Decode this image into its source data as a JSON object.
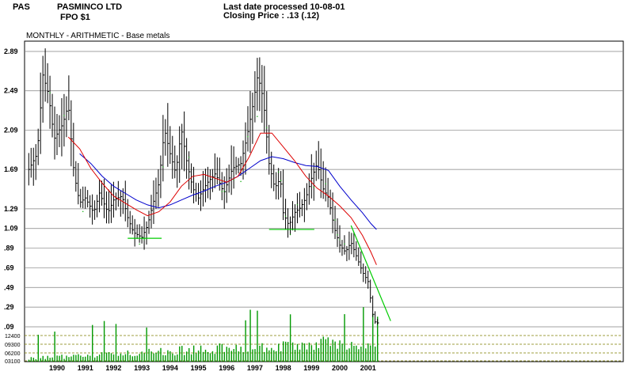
{
  "header": {
    "ticker": "PAS",
    "company": "PASMINCO LTD",
    "security": "FPO $1",
    "last_date": "Last date processed 10-08-01",
    "closing_price": "Closing Price : .13  (.12)"
  },
  "subtitle": "MONTHLY  -  ARITHMETIC  -      Base metals",
  "colors": {
    "price_bar": "#000000",
    "ma_short": "#dd0000",
    "ma_long": "#0000cc",
    "trendline": "#00cc00",
    "volume": "#009900",
    "grid": "#808080",
    "dotted_series": "#00aa00"
  },
  "chart_data": {
    "type": "ohlc-bar",
    "title": "PASMINCO LTD",
    "xlabel": "",
    "ylabel": "",
    "y_ticks": [
      2.89,
      2.49,
      2.09,
      1.69,
      1.29,
      1.09,
      0.89,
      0.69,
      0.49,
      0.29,
      0.09
    ],
    "y_tick_labels": [
      "2.89",
      "2.49",
      "2.09",
      "1.69",
      "1.29",
      "1.09",
      ".89",
      ".69",
      ".49",
      ".29",
      ".09"
    ],
    "x_years": [
      1990,
      1991,
      1992,
      1993,
      1994,
      1995,
      1996,
      1997,
      1998,
      1999,
      2000,
      2001
    ],
    "x_tick_labels": [
      "1990",
      "1991",
      "1992",
      "1993",
      "1994",
      "1995",
      "1996",
      "1997",
      "1998",
      "1999",
      "2000",
      "2001"
    ],
    "x_range": [
      1989.0,
      2001.4
    ],
    "volume_tick_labels": [
      "12400",
      "09300",
      "06200",
      "03100"
    ],
    "price_path": [
      {
        "t": 1989.0,
        "p": 1.69
      },
      {
        "t": 1989.3,
        "p": 1.85
      },
      {
        "t": 1989.5,
        "p": 2.65
      },
      {
        "t": 1989.7,
        "p": 2.45
      },
      {
        "t": 1989.9,
        "p": 2.0
      },
      {
        "t": 1990.2,
        "p": 2.15
      },
      {
        "t": 1990.4,
        "p": 2.35
      },
      {
        "t": 1990.6,
        "p": 1.65
      },
      {
        "t": 1990.8,
        "p": 1.35
      },
      {
        "t": 1991.0,
        "p": 1.4
      },
      {
        "t": 1991.3,
        "p": 1.25
      },
      {
        "t": 1991.5,
        "p": 1.45
      },
      {
        "t": 1991.8,
        "p": 1.25
      },
      {
        "t": 1992.0,
        "p": 1.38
      },
      {
        "t": 1992.3,
        "p": 1.42
      },
      {
        "t": 1992.5,
        "p": 1.2
      },
      {
        "t": 1992.7,
        "p": 1.05
      },
      {
        "t": 1993.0,
        "p": 1.0
      },
      {
        "t": 1993.2,
        "p": 1.12
      },
      {
        "t": 1993.4,
        "p": 1.35
      },
      {
        "t": 1993.6,
        "p": 1.55
      },
      {
        "t": 1993.8,
        "p": 2.1
      },
      {
        "t": 1994.0,
        "p": 1.85
      },
      {
        "t": 1994.2,
        "p": 1.65
      },
      {
        "t": 1994.4,
        "p": 2.1
      },
      {
        "t": 1994.6,
        "p": 1.75
      },
      {
        "t": 1994.8,
        "p": 1.5
      },
      {
        "t": 1995.0,
        "p": 1.4
      },
      {
        "t": 1995.3,
        "p": 1.55
      },
      {
        "t": 1995.6,
        "p": 1.65
      },
      {
        "t": 1995.9,
        "p": 1.45
      },
      {
        "t": 1996.2,
        "p": 1.7
      },
      {
        "t": 1996.5,
        "p": 1.75
      },
      {
        "t": 1996.7,
        "p": 2.0
      },
      {
        "t": 1996.9,
        "p": 2.3
      },
      {
        "t": 1997.1,
        "p": 2.65
      },
      {
        "t": 1997.3,
        "p": 2.4
      },
      {
        "t": 1997.5,
        "p": 1.75
      },
      {
        "t": 1997.7,
        "p": 1.5
      },
      {
        "t": 1997.9,
        "p": 1.6
      },
      {
        "t": 1998.0,
        "p": 1.25
      },
      {
        "t": 1998.2,
        "p": 1.12
      },
      {
        "t": 1998.4,
        "p": 1.25
      },
      {
        "t": 1998.6,
        "p": 1.3
      },
      {
        "t": 1998.8,
        "p": 1.4
      },
      {
        "t": 1999.0,
        "p": 1.6
      },
      {
        "t": 1999.2,
        "p": 1.75
      },
      {
        "t": 1999.4,
        "p": 1.5
      },
      {
        "t": 1999.6,
        "p": 1.4
      },
      {
        "t": 1999.8,
        "p": 1.1
      },
      {
        "t": 2000.0,
        "p": 0.92
      },
      {
        "t": 2000.2,
        "p": 0.85
      },
      {
        "t": 2000.4,
        "p": 0.95
      },
      {
        "t": 2000.6,
        "p": 0.8
      },
      {
        "t": 2000.8,
        "p": 0.65
      },
      {
        "t": 2001.0,
        "p": 0.55
      },
      {
        "t": 2001.1,
        "p": 0.35
      },
      {
        "t": 2001.2,
        "p": 0.15
      },
      {
        "t": 2001.3,
        "p": 0.13
      }
    ],
    "ma_short": [
      {
        "t": 1990.4,
        "p": 2.02
      },
      {
        "t": 1990.8,
        "p": 1.9
      },
      {
        "t": 1991.2,
        "p": 1.7
      },
      {
        "t": 1991.6,
        "p": 1.55
      },
      {
        "t": 1992.0,
        "p": 1.42
      },
      {
        "t": 1992.4,
        "p": 1.35
      },
      {
        "t": 1992.8,
        "p": 1.28
      },
      {
        "t": 1993.2,
        "p": 1.22
      },
      {
        "t": 1993.6,
        "p": 1.26
      },
      {
        "t": 1994.0,
        "p": 1.36
      },
      {
        "t": 1994.4,
        "p": 1.52
      },
      {
        "t": 1994.8,
        "p": 1.62
      },
      {
        "t": 1995.2,
        "p": 1.64
      },
      {
        "t": 1995.6,
        "p": 1.6
      },
      {
        "t": 1996.0,
        "p": 1.56
      },
      {
        "t": 1996.4,
        "p": 1.62
      },
      {
        "t": 1996.8,
        "p": 1.82
      },
      {
        "t": 1997.2,
        "p": 2.06
      },
      {
        "t": 1997.6,
        "p": 2.06
      },
      {
        "t": 1998.0,
        "p": 1.92
      },
      {
        "t": 1998.4,
        "p": 1.78
      },
      {
        "t": 1998.8,
        "p": 1.62
      },
      {
        "t": 1999.2,
        "p": 1.5
      },
      {
        "t": 1999.6,
        "p": 1.42
      },
      {
        "t": 2000.0,
        "p": 1.32
      },
      {
        "t": 2000.4,
        "p": 1.2
      },
      {
        "t": 2000.8,
        "p": 1.02
      },
      {
        "t": 2001.1,
        "p": 0.85
      },
      {
        "t": 2001.3,
        "p": 0.72
      }
    ],
    "ma_long": [
      {
        "t": 1990.8,
        "p": 1.85
      },
      {
        "t": 1991.2,
        "p": 1.75
      },
      {
        "t": 1991.6,
        "p": 1.62
      },
      {
        "t": 1992.0,
        "p": 1.52
      },
      {
        "t": 1992.4,
        "p": 1.45
      },
      {
        "t": 1992.8,
        "p": 1.38
      },
      {
        "t": 1993.2,
        "p": 1.33
      },
      {
        "t": 1993.6,
        "p": 1.3
      },
      {
        "t": 1994.0,
        "p": 1.33
      },
      {
        "t": 1994.4,
        "p": 1.38
      },
      {
        "t": 1994.8,
        "p": 1.43
      },
      {
        "t": 1995.2,
        "p": 1.47
      },
      {
        "t": 1995.6,
        "p": 1.52
      },
      {
        "t": 1996.0,
        "p": 1.56
      },
      {
        "t": 1996.4,
        "p": 1.62
      },
      {
        "t": 1996.8,
        "p": 1.7
      },
      {
        "t": 1997.2,
        "p": 1.78
      },
      {
        "t": 1997.6,
        "p": 1.82
      },
      {
        "t": 1998.0,
        "p": 1.8
      },
      {
        "t": 1998.4,
        "p": 1.76
      },
      {
        "t": 1998.8,
        "p": 1.73
      },
      {
        "t": 1999.2,
        "p": 1.72
      },
      {
        "t": 1999.6,
        "p": 1.68
      },
      {
        "t": 2000.0,
        "p": 1.52
      },
      {
        "t": 2000.4,
        "p": 1.38
      },
      {
        "t": 2000.8,
        "p": 1.25
      },
      {
        "t": 2001.1,
        "p": 1.14
      },
      {
        "t": 2001.3,
        "p": 1.08
      }
    ],
    "support_lines": [
      {
        "t1": 1992.5,
        "t2": 1993.7,
        "p": 0.99
      },
      {
        "t1": 1997.5,
        "t2": 1999.1,
        "p": 1.08
      }
    ],
    "trendline": {
      "t1": 2000.4,
      "p1": 1.12,
      "t2": 2001.8,
      "p2": 0.15
    }
  }
}
